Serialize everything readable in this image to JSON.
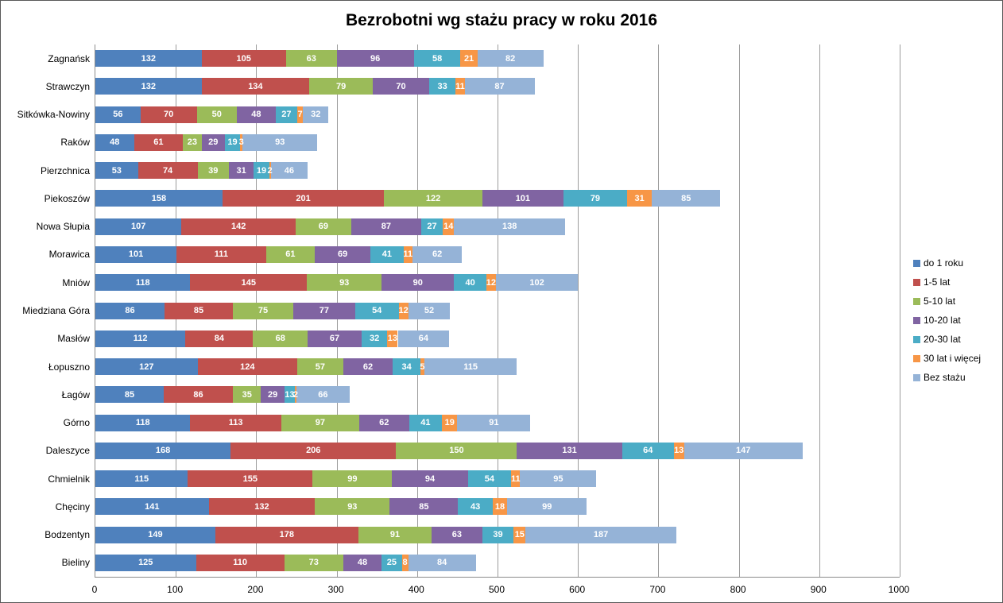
{
  "chart_data": {
    "type": "bar",
    "orientation": "horizontal",
    "stacked": true,
    "title": "Bezrobotni wg stażu pracy w roku 2016",
    "grid": true,
    "legend_position": "right",
    "categories": [
      "Zagnańsk",
      "Strawczyn",
      "Sitkówka-Nowiny",
      "Raków",
      "Pierzchnica",
      "Piekoszów",
      "Nowa Słupia",
      "Morawica",
      "Mniów",
      "Miedziana Góra",
      "Masłów",
      "Łopuszno",
      "Łagów",
      "Górno",
      "Daleszyce",
      "Chmielnik",
      "Chęciny",
      "Bodzentyn",
      "Bieliny"
    ],
    "series": [
      {
        "name": "do 1 roku",
        "color": "#4F81BD",
        "values": [
          132,
          132,
          56,
          48,
          53,
          158,
          107,
          101,
          118,
          86,
          112,
          127,
          85,
          118,
          168,
          115,
          141,
          149,
          125
        ]
      },
      {
        "name": "1-5 lat",
        "color": "#C0504D",
        "values": [
          105,
          134,
          70,
          61,
          74,
          201,
          142,
          111,
          145,
          85,
          84,
          124,
          86,
          113,
          206,
          155,
          132,
          178,
          110
        ]
      },
      {
        "name": "5-10 lat",
        "color": "#9BBB59",
        "values": [
          63,
          79,
          50,
          23,
          39,
          122,
          69,
          61,
          93,
          75,
          68,
          57,
          35,
          97,
          150,
          99,
          93,
          91,
          73
        ]
      },
      {
        "name": "10-20 lat",
        "color": "#8064A2",
        "values": [
          96,
          70,
          48,
          29,
          31,
          101,
          87,
          69,
          90,
          77,
          67,
          62,
          29,
          62,
          131,
          94,
          85,
          63,
          48
        ]
      },
      {
        "name": "20-30 lat",
        "color": "#4BACC6",
        "values": [
          58,
          33,
          27,
          19,
          19,
          79,
          27,
          41,
          40,
          54,
          32,
          34,
          13,
          41,
          64,
          54,
          43,
          39,
          25
        ]
      },
      {
        "name": "30 lat i więcej",
        "color": "#F79646",
        "values": [
          21,
          11,
          7,
          3,
          2,
          31,
          14,
          11,
          12,
          12,
          13,
          5,
          2,
          19,
          13,
          11,
          18,
          15,
          8
        ]
      },
      {
        "name": "Bez stażu",
        "color": "#95B3D7",
        "values": [
          82,
          87,
          32,
          93,
          46,
          85,
          138,
          62,
          102,
          52,
          64,
          115,
          66,
          91,
          147,
          95,
          99,
          187,
          84
        ]
      }
    ],
    "x_axis": {
      "min": 0,
      "max": 1000,
      "tick_interval": 100,
      "ticks": [
        0,
        100,
        200,
        300,
        400,
        500,
        600,
        700,
        800,
        900,
        1000
      ]
    },
    "axis_color": "#8c8c8c",
    "gridline_color": "#9c9c9c"
  }
}
